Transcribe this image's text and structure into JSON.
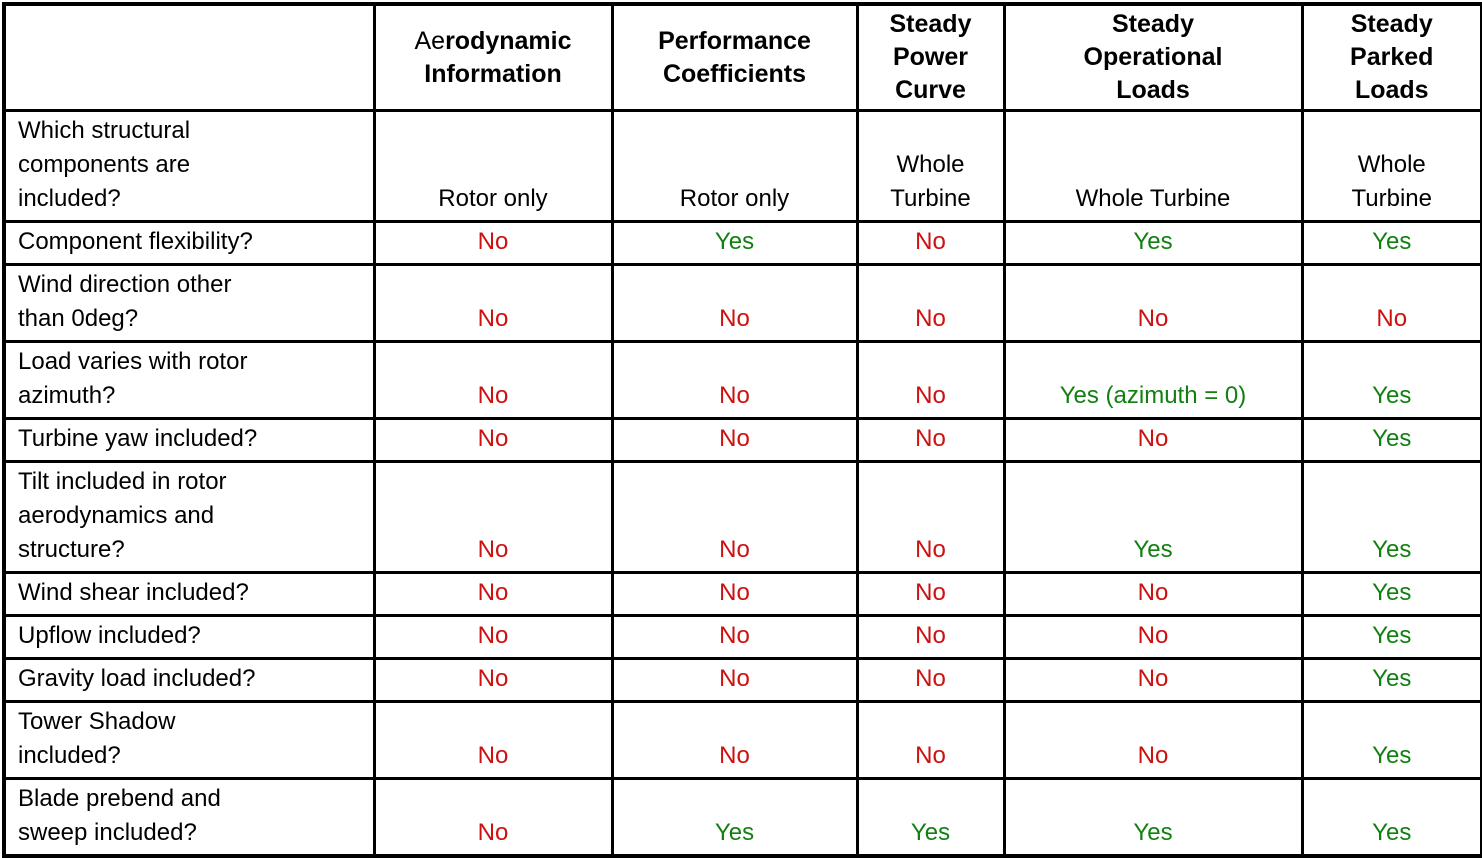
{
  "title": "Model capability comparison table",
  "colors": {
    "text": "#000000",
    "border": "#000000",
    "background": "#ffffff",
    "no": "#cc1111",
    "yes": "#118011"
  },
  "header": {
    "corner_label": "",
    "columns": [
      {
        "name": "aerodynamic-information",
        "normal_prefix": "Ae",
        "bold_rest": "rodynamic",
        "line2": "Information"
      },
      {
        "name": "performance-coefficients",
        "label": "Performance\nCoefficients"
      },
      {
        "name": "steady-power-curve",
        "label": "Steady\nPower\nCurve"
      },
      {
        "name": "steady-operational-loads",
        "label": "Steady\nOperational\nLoads"
      },
      {
        "name": "steady-parked-loads",
        "label": "Steady\nParked\nLoads"
      }
    ]
  },
  "rows": [
    {
      "question": "Which structural\ncomponents are\nincluded?",
      "values": [
        "Rotor only",
        "Rotor only",
        "Whole\nTurbine",
        "Whole Turbine",
        "Whole\nTurbine"
      ]
    },
    {
      "question": "Component flexibility?",
      "values": [
        "No",
        "Yes",
        "No",
        "Yes",
        "Yes"
      ]
    },
    {
      "question": "Wind direction other\nthan 0deg?",
      "values": [
        "No",
        "No",
        "No",
        "No",
        "No"
      ]
    },
    {
      "question": "Load varies with rotor\nazimuth?",
      "values": [
        "No",
        "No",
        "No",
        "Yes (azimuth = 0)",
        "Yes"
      ]
    },
    {
      "question": "Turbine yaw included?",
      "values": [
        "No",
        "No",
        "No",
        "No",
        "Yes"
      ]
    },
    {
      "question": "Tilt included in rotor\naerodynamics and\nstructure?",
      "values": [
        "No",
        "No",
        "No",
        "Yes",
        "Yes"
      ]
    },
    {
      "question": "Wind shear included?",
      "values": [
        "No",
        "No",
        "No",
        "No",
        "Yes"
      ]
    },
    {
      "question": "Upflow included?",
      "values": [
        "No",
        "No",
        "No",
        "No",
        "Yes"
      ]
    },
    {
      "question": "Gravity load included?",
      "values": [
        "No",
        "No",
        "No",
        "No",
        "Yes"
      ]
    },
    {
      "question": "Tower Shadow\nincluded?",
      "values": [
        "No",
        "No",
        "No",
        "No",
        "Yes"
      ]
    },
    {
      "question": "Blade prebend and\nsweep included?",
      "values": [
        "No",
        "Yes",
        "Yes",
        "Yes",
        "Yes"
      ]
    }
  ]
}
